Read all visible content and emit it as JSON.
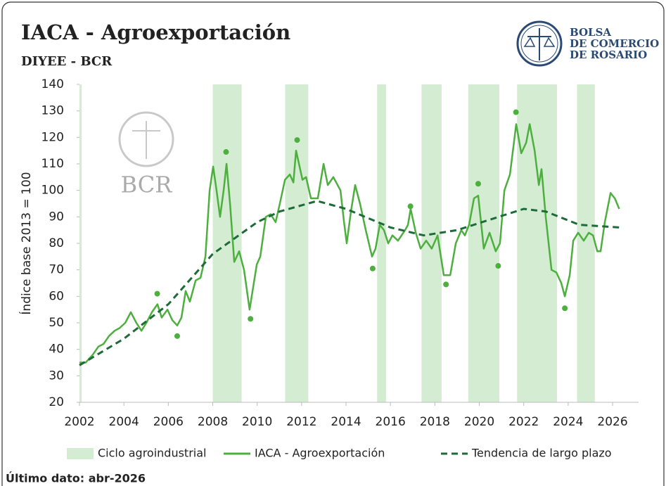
{
  "chart_data": {
    "type": "line",
    "title": "IACA - Agroexportación",
    "subtitle": "DIYEE - BCR",
    "y_label": "Índice base 2013 = 100",
    "logo_text": [
      "BOLSA",
      "DE COMERCIO",
      "DE ROSARIO"
    ],
    "watermark": "BCR",
    "footer": "Último dato: abr-2026",
    "xlim": [
      2002,
      2027.17
    ],
    "xticks": [
      2002,
      2004,
      2006,
      2008,
      2010,
      2012,
      2014,
      2016,
      2018,
      2020,
      2022,
      2024,
      2026
    ],
    "ylim": [
      20,
      140
    ],
    "yticks": [
      20,
      30,
      40,
      50,
      60,
      70,
      80,
      90,
      100,
      110,
      120,
      130,
      140
    ],
    "series": [
      {
        "name": "Ciclo agroindustrial",
        "color": "#d3ecd2",
        "bands": [
          [
            2002.0,
            2002.1
          ],
          [
            2008.0,
            2009.3
          ],
          [
            2011.26,
            2012.3
          ],
          [
            2015.4,
            2015.8
          ],
          [
            2017.4,
            2018.3
          ],
          [
            2019.5,
            2020.9
          ],
          [
            2021.7,
            2023.5
          ],
          [
            2024.4,
            2025.2
          ]
        ]
      },
      {
        "name": "IACA - Agroexportación",
        "color": "#4caf3e",
        "x": [
          2002.0,
          2002.28,
          2002.6,
          2002.85,
          2003.08,
          2003.33,
          2003.58,
          2003.8,
          2004.06,
          2004.31,
          2004.56,
          2004.79,
          2005.01,
          2005.26,
          2005.51,
          2005.7,
          2005.96,
          2006.18,
          2006.4,
          2006.59,
          2006.78,
          2006.97,
          2007.23,
          2007.45,
          2007.67,
          2007.86,
          2008.02,
          2008.17,
          2008.33,
          2008.49,
          2008.62,
          2008.78,
          2008.97,
          2009.19,
          2009.41,
          2009.66,
          2009.98,
          2010.14,
          2010.39,
          2010.61,
          2010.83,
          2011.02,
          2011.25,
          2011.47,
          2011.63,
          2011.75,
          2012.04,
          2012.2,
          2012.42,
          2012.73,
          2012.99,
          2013.18,
          2013.43,
          2013.75,
          2013.91,
          2014.03,
          2014.22,
          2014.41,
          2014.63,
          2014.89,
          2015.17,
          2015.33,
          2015.52,
          2015.71,
          2015.9,
          2016.09,
          2016.34,
          2016.66,
          2016.79,
          2016.91,
          2017.14,
          2017.36,
          2017.61,
          2017.86,
          2018.12,
          2018.4,
          2018.69,
          2018.94,
          2019.19,
          2019.35,
          2019.54,
          2019.76,
          2019.95,
          2020.2,
          2020.46,
          2020.74,
          2020.93,
          2021.13,
          2021.38,
          2021.66,
          2021.89,
          2022.11,
          2022.27,
          2022.49,
          2022.68,
          2022.8,
          2022.99,
          2023.25,
          2023.47,
          2023.69,
          2023.85,
          2024.07,
          2024.23,
          2024.45,
          2024.7,
          2024.93,
          2025.12,
          2025.31,
          2025.46,
          2025.65,
          2025.91,
          2026.1,
          2026.3
        ],
        "values": [
          35,
          35,
          38,
          41,
          42,
          45,
          47,
          48,
          50,
          54,
          50,
          47,
          50,
          54,
          57,
          52,
          55,
          51,
          49,
          52,
          62,
          58,
          66,
          67,
          75,
          100,
          109,
          100,
          90,
          100,
          110,
          95,
          73,
          77,
          70,
          55,
          72,
          75,
          90,
          91,
          88,
          95,
          104,
          106,
          103,
          115,
          104,
          105,
          97,
          97,
          110,
          102,
          105,
          100,
          88,
          80,
          92,
          102,
          95,
          85,
          75,
          78,
          87,
          85,
          80,
          83,
          81,
          85,
          87,
          93,
          84,
          78,
          81,
          78,
          83,
          68,
          68,
          80,
          85,
          83,
          87,
          97,
          98,
          78,
          84,
          77,
          80,
          100,
          106,
          125,
          114,
          118,
          125,
          115,
          102,
          108,
          90,
          70,
          69,
          65,
          60,
          68,
          81,
          84,
          81,
          84,
          83,
          77,
          77,
          88,
          99,
          97,
          93
        ]
      },
      {
        "name": "Tendencia de largo plazo",
        "color": "#1e6b3a",
        "dashed": true,
        "x": [
          2002,
          2004,
          2006,
          2008,
          2010,
          2011,
          2012.7,
          2014,
          2016,
          2017.5,
          2019,
          2020.5,
          2022,
          2023,
          2024.5,
          2026.3
        ],
        "values": [
          34,
          44,
          57,
          76,
          88,
          92,
          96,
          93,
          86,
          83,
          85,
          89,
          93,
          92,
          87,
          86
        ]
      }
    ],
    "markers": {
      "color": "#4caf3e",
      "x": [
        2005.5,
        2006.4,
        2008.6,
        2009.7,
        2011.8,
        2015.2,
        2016.9,
        2018.5,
        2019.95,
        2020.85,
        2021.65,
        2023.85
      ],
      "values": [
        61,
        45,
        114.5,
        51.5,
        119,
        70.5,
        94,
        64.5,
        102.5,
        71.5,
        129.5,
        55.5
      ]
    }
  }
}
